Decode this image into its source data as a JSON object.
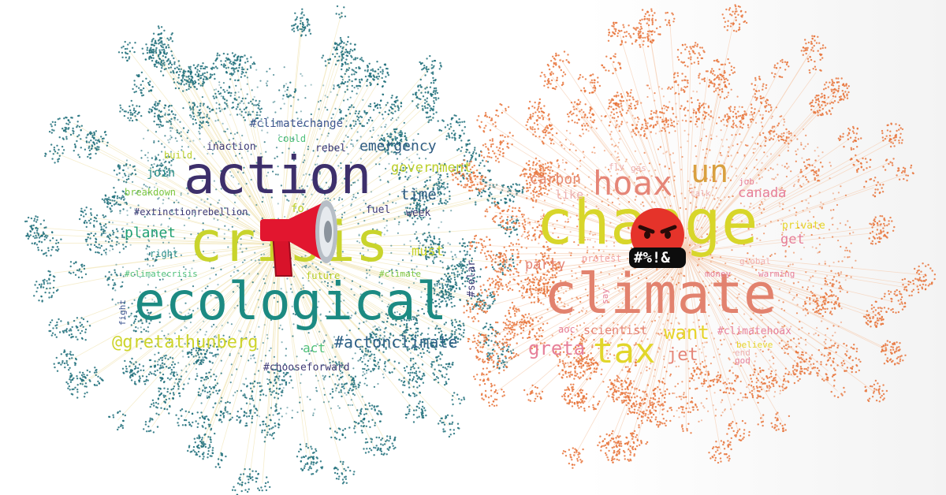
{
  "colors": {
    "left_dots": "#1f6e7a",
    "right_dots": "#e8743b",
    "left_edges": "#f2e6b8",
    "right_edges": "#f6cfb4"
  },
  "left_cloud": {
    "words": [
      {
        "text": "action",
        "color": "#3d2f6b"
      },
      {
        "text": "crisis",
        "color": "#c9d42c"
      },
      {
        "text": "ecological",
        "color": "#1c8a82"
      },
      {
        "text": "@gretathunberg",
        "color": "#cdd42a"
      },
      {
        "text": "#actonclimate",
        "color": "#2c5f85"
      },
      {
        "text": "emergency",
        "color": "#2e5b80"
      },
      {
        "text": "government",
        "color": "#bcd02a"
      },
      {
        "text": "time",
        "color": "#2e5b80"
      },
      {
        "text": "planet",
        "color": "#22a074"
      },
      {
        "text": "must",
        "color": "#cad42a"
      },
      {
        "text": "#climatechange",
        "color": "#3e5690"
      },
      {
        "text": "inaction",
        "color": "#3e3a76"
      },
      {
        "text": "rebel",
        "color": "#3e3a76"
      },
      {
        "text": "could",
        "color": "#4fc07a"
      },
      {
        "text": "build",
        "color": "#bcd02a"
      },
      {
        "text": "join",
        "color": "#2b8f8a"
      },
      {
        "text": "breakdown",
        "color": "#7ac640"
      },
      {
        "text": "#extinctionrebellion",
        "color": "#3e3a76"
      },
      {
        "text": "fuel",
        "color": "#3e3a76"
      },
      {
        "text": "week",
        "color": "#3e3a76"
      },
      {
        "text": "right",
        "color": "#2b8f8a"
      },
      {
        "text": "#climatecrisis",
        "color": "#4fc07a"
      },
      {
        "text": "future",
        "color": "#bcd02a"
      },
      {
        "text": "#climate",
        "color": "#7ac640"
      },
      {
        "text": "#solar",
        "color": "#3e3a76"
      },
      {
        "text": "fight",
        "color": "#3e5690"
      },
      {
        "text": "act",
        "color": "#4fc07a"
      },
      {
        "text": "#chooseforward",
        "color": "#3e3a76"
      },
      {
        "text": "fo",
        "color": "#bcd02a"
      }
    ]
  },
  "right_cloud": {
    "words": [
      {
        "text": "change",
        "color": "#d8d62a"
      },
      {
        "text": "climate",
        "color": "#e2826e"
      },
      {
        "text": "hoax",
        "color": "#e58577"
      },
      {
        "text": "un",
        "color": "#d9a040"
      },
      {
        "text": "tax",
        "color": "#e2d62a"
      },
      {
        "text": "greta",
        "color": "#e7809a"
      },
      {
        "text": "carbon",
        "color": "#e68a72"
      },
      {
        "text": "like",
        "color": "#edb0b0"
      },
      {
        "text": "canada",
        "color": "#e7809a"
      },
      {
        "text": "party",
        "color": "#e58577"
      },
      {
        "text": "protest",
        "color": "#f2a6a6"
      },
      {
        "text": "want",
        "color": "#e7d42a"
      },
      {
        "text": "jet",
        "color": "#e58577"
      },
      {
        "text": "scientist",
        "color": "#e58577"
      },
      {
        "text": "aoc",
        "color": "#e7809a"
      },
      {
        "text": "#climatehoax",
        "color": "#e7809a"
      },
      {
        "text": "private",
        "color": "#e7d42a"
      },
      {
        "text": "get",
        "color": "#e7809a"
      },
      {
        "text": "global",
        "color": "#f2b0b0"
      },
      {
        "text": "warming",
        "color": "#e7809a"
      },
      {
        "text": "money",
        "color": "#e7809a"
      },
      {
        "text": "believe",
        "color": "#e7d42a"
      },
      {
        "text": "end",
        "color": "#edb0b0"
      },
      {
        "text": "god",
        "color": "#e7809a"
      },
      {
        "text": "job",
        "color": "#e7809a"
      },
      {
        "text": "fly",
        "color": "#edb0b0"
      },
      {
        "text": "gas",
        "color": "#edb0b0"
      },
      {
        "text": "talk",
        "color": "#edb0b0"
      },
      {
        "text": "say",
        "color": "#e7809a"
      }
    ]
  },
  "icons": {
    "left": "megaphone-icon",
    "right": "angry-face-icon",
    "angry_caption": "#%!&"
  }
}
